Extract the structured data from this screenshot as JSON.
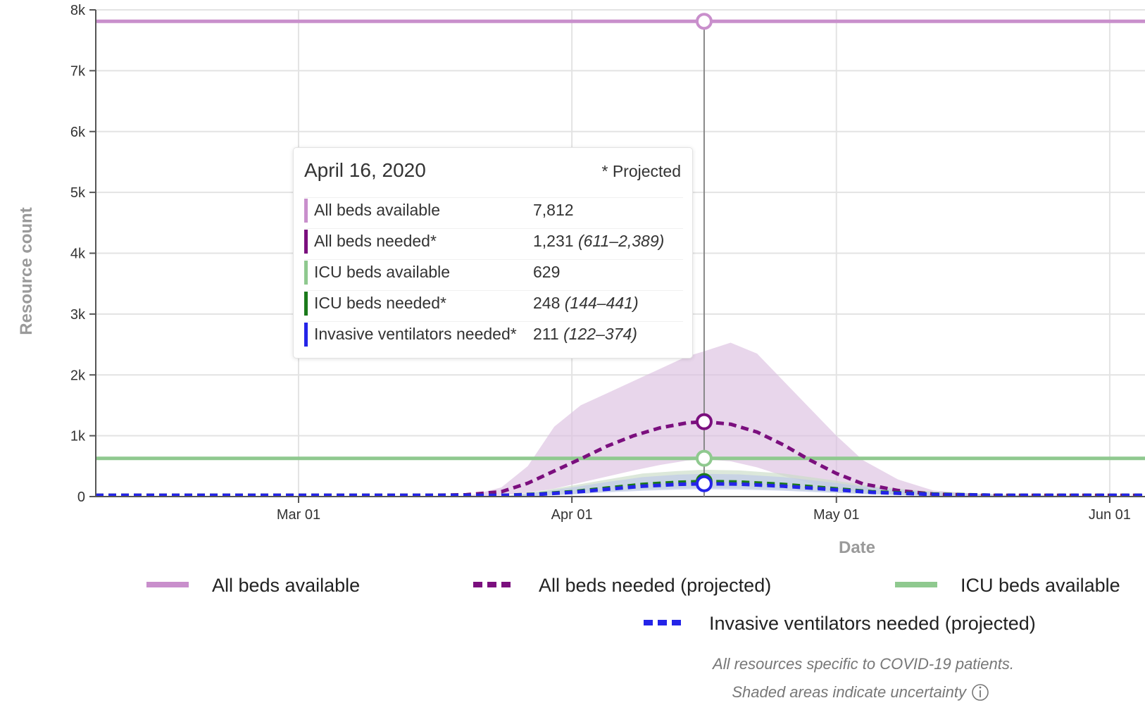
{
  "chart_data": {
    "type": "line",
    "xlabel": "Date",
    "ylabel": "Resource count",
    "ylim": [
      0,
      8000
    ],
    "xlim": [
      "2020-02-07",
      "2020-06-05"
    ],
    "x_ticks": [
      {
        "date": "2020-03-01",
        "label": "Mar 01"
      },
      {
        "date": "2020-04-01",
        "label": "Apr 01"
      },
      {
        "date": "2020-05-01",
        "label": "May 01"
      },
      {
        "date": "2020-06-01",
        "label": "Jun 01"
      }
    ],
    "y_ticks": [
      {
        "value": 0,
        "label": "0"
      },
      {
        "value": 1000,
        "label": "1k"
      },
      {
        "value": 2000,
        "label": "2k"
      },
      {
        "value": 3000,
        "label": "3k"
      },
      {
        "value": 4000,
        "label": "4k"
      },
      {
        "value": 5000,
        "label": "5k"
      },
      {
        "value": 6000,
        "label": "6k"
      },
      {
        "value": 7000,
        "label": "7k"
      },
      {
        "value": 8000,
        "label": "8k"
      }
    ],
    "grid": true,
    "legend_position": "bottom",
    "series": [
      {
        "name": "All beds available",
        "color": "#c98fcc",
        "style": "solid",
        "x": [
          "2020-02-07",
          "2020-06-05"
        ],
        "y": [
          7812,
          7812
        ]
      },
      {
        "name": "ICU beds available",
        "color": "#8fc98f",
        "style": "solid",
        "x": [
          "2020-02-07",
          "2020-06-05"
        ],
        "y": [
          629,
          629
        ]
      },
      {
        "name": "All beds needed (projected)",
        "color": "#7b0f7e",
        "style": "dashed",
        "band_color": "#dcc0e1",
        "x": [
          "2020-02-07",
          "2020-03-15",
          "2020-03-20",
          "2020-03-24",
          "2020-03-27",
          "2020-03-30",
          "2020-04-02",
          "2020-04-05",
          "2020-04-08",
          "2020-04-11",
          "2020-04-14",
          "2020-04-16",
          "2020-04-19",
          "2020-04-22",
          "2020-04-25",
          "2020-04-28",
          "2020-05-01",
          "2020-05-04",
          "2020-05-08",
          "2020-05-12",
          "2020-05-18",
          "2020-06-05"
        ],
        "y": [
          20,
          20,
          30,
          80,
          220,
          420,
          620,
          830,
          1000,
          1130,
          1210,
          1231,
          1190,
          1060,
          850,
          600,
          380,
          210,
          100,
          40,
          20,
          20
        ],
        "lower": [
          0,
          0,
          0,
          20,
          60,
          130,
          230,
          330,
          430,
          520,
          590,
          611,
          580,
          480,
          340,
          220,
          130,
          70,
          30,
          10,
          0,
          0
        ],
        "upper": [
          0,
          0,
          0,
          150,
          500,
          1150,
          1500,
          1700,
          1900,
          2100,
          2300,
          2389,
          2530,
          2350,
          1900,
          1450,
          1000,
          600,
          280,
          100,
          30,
          0
        ]
      },
      {
        "name": "ICU beds needed (projected)",
        "color": "#1b7a1b",
        "style": "dashed",
        "band_color": "#c9dcc6",
        "x": [
          "2020-02-07",
          "2020-03-24",
          "2020-03-28",
          "2020-04-01",
          "2020-04-05",
          "2020-04-09",
          "2020-04-13",
          "2020-04-16",
          "2020-04-20",
          "2020-04-25",
          "2020-04-30",
          "2020-05-05",
          "2020-05-12",
          "2020-05-20",
          "2020-06-05"
        ],
        "y": [
          20,
          20,
          40,
          80,
          140,
          200,
          235,
          248,
          240,
          200,
          140,
          80,
          40,
          20,
          20
        ],
        "lower": [
          0,
          0,
          15,
          40,
          80,
          115,
          135,
          144,
          135,
          110,
          75,
          40,
          15,
          5,
          0
        ],
        "upper": [
          0,
          0,
          80,
          180,
          280,
          380,
          420,
          441,
          430,
          380,
          280,
          170,
          80,
          30,
          0
        ]
      },
      {
        "name": "Invasive ventilators needed (projected)",
        "color": "#2424e8",
        "style": "dashed",
        "band_color": "#bdc8ea",
        "x": [
          "2020-02-07",
          "2020-03-24",
          "2020-03-28",
          "2020-04-01",
          "2020-04-05",
          "2020-04-09",
          "2020-04-13",
          "2020-04-16",
          "2020-04-20",
          "2020-04-25",
          "2020-04-30",
          "2020-05-05",
          "2020-05-12",
          "2020-05-20",
          "2020-06-05"
        ],
        "y": [
          20,
          20,
          35,
          70,
          120,
          170,
          200,
          211,
          205,
          170,
          120,
          70,
          35,
          20,
          20
        ],
        "lower": [
          0,
          0,
          10,
          35,
          70,
          95,
          115,
          122,
          115,
          95,
          65,
          35,
          12,
          5,
          0
        ],
        "upper": [
          0,
          0,
          70,
          150,
          240,
          320,
          360,
          374,
          365,
          320,
          240,
          150,
          70,
          25,
          0
        ]
      }
    ],
    "hover_date": "2020-04-16"
  },
  "tooltip": {
    "date": "April 16, 2020",
    "projected_note": "* Projected",
    "rows": [
      {
        "label": "All beds available",
        "value": "7,812",
        "range": "",
        "color": "#c98fcc"
      },
      {
        "label": "All beds needed*",
        "value": "1,231",
        "range": "(611–2,389)",
        "color": "#7b0f7e"
      },
      {
        "label": "ICU beds available",
        "value": "629",
        "range": "",
        "color": "#8fc98f"
      },
      {
        "label": "ICU beds needed*",
        "value": "248",
        "range": "(144–441)",
        "color": "#1b7a1b"
      },
      {
        "label": "Invasive ventilators needed*",
        "value": "211",
        "range": "(122–374)",
        "color": "#2424e8"
      }
    ]
  },
  "legend": {
    "items": [
      {
        "label": "All beds available",
        "color": "#c98fcc",
        "style": "solid"
      },
      {
        "label": "All beds needed (projected)",
        "color": "#7b0f7e",
        "style": "dashed"
      },
      {
        "label": "ICU beds available",
        "color": "#8fc98f",
        "style": "solid"
      },
      {
        "label": "Invasive ventilators needed (projected)",
        "color": "#2424e8",
        "style": "dashed"
      }
    ]
  },
  "notes": {
    "line1": "All resources specific to COVID-19 patients.",
    "line2": "Shaded areas indicate uncertainty",
    "info_icon": "info-icon"
  }
}
